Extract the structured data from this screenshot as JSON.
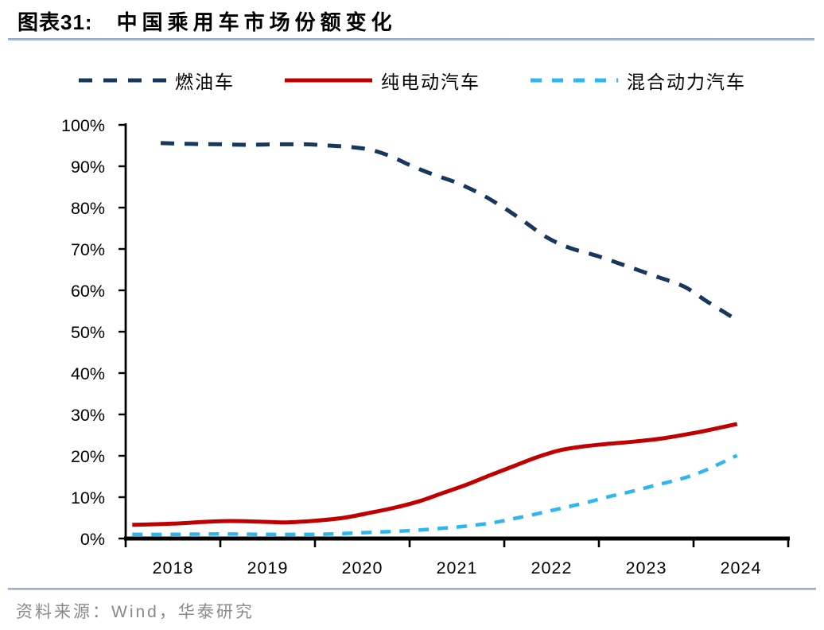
{
  "figure": {
    "label": "图表31:",
    "title": "中国乘用车市场份额变化",
    "source": "资料来源：Wind，华泰研究"
  },
  "legend": [
    {
      "label": "燃油车",
      "color": "#17375E",
      "dash": "17 14"
    },
    {
      "label": "纯电动汽车",
      "color": "#C00000",
      "dash": ""
    },
    {
      "label": "混合动力汽车",
      "color": "#2EB6F0",
      "dash": "14 13"
    }
  ],
  "chart_data": {
    "type": "line",
    "title": "中国乘用车市场份额变化",
    "grid": false,
    "legend_position": "top",
    "x_axis": {
      "range": [
        2018,
        2025
      ],
      "tick_labels": [
        "2018",
        "2019",
        "2020",
        "2021",
        "2022",
        "2023",
        "2024"
      ]
    },
    "y_axis": {
      "range": [
        0,
        100
      ],
      "ticks": [
        0,
        10,
        20,
        30,
        40,
        50,
        60,
        70,
        80,
        90,
        100
      ],
      "tick_labels": [
        "0%",
        "10%",
        "20%",
        "30%",
        "40%",
        "50%",
        "60%",
        "70%",
        "80%",
        "90%",
        "100%"
      ],
      "unit": "%"
    },
    "series": [
      {
        "name": "燃油车",
        "color": "#17375E",
        "line_style": "dashed",
        "dash": "17 13",
        "stroke_width": 5,
        "points": [
          [
            2018.37,
            95.6
          ],
          [
            2018.7,
            95.4
          ],
          [
            2019.0,
            95.3
          ],
          [
            2019.3,
            95.2
          ],
          [
            2019.6,
            95.3
          ],
          [
            2019.9,
            95.3
          ],
          [
            2020.15,
            95.0
          ],
          [
            2020.4,
            94.6
          ],
          [
            2020.6,
            93.9
          ],
          [
            2020.8,
            92.4
          ],
          [
            2021.0,
            90.3
          ],
          [
            2021.25,
            88.0
          ],
          [
            2021.5,
            86.0
          ],
          [
            2021.75,
            83.3
          ],
          [
            2022.0,
            79.9
          ],
          [
            2022.2,
            76.8
          ],
          [
            2022.45,
            72.8
          ],
          [
            2022.7,
            70.2
          ],
          [
            2023.0,
            68.2
          ],
          [
            2023.3,
            65.8
          ],
          [
            2023.6,
            63.4
          ],
          [
            2023.9,
            60.9
          ],
          [
            2024.15,
            57.2
          ],
          [
            2024.46,
            52.8
          ]
        ]
      },
      {
        "name": "纯电动汽车",
        "color": "#C00000",
        "line_style": "solid",
        "dash": "",
        "stroke_width": 5,
        "points": [
          [
            2018.07,
            3.3
          ],
          [
            2018.5,
            3.6
          ],
          [
            2019.0,
            4.2
          ],
          [
            2019.4,
            4.1
          ],
          [
            2019.7,
            3.9
          ],
          [
            2020.0,
            4.3
          ],
          [
            2020.3,
            5.0
          ],
          [
            2020.6,
            6.3
          ],
          [
            2020.85,
            7.5
          ],
          [
            2021.1,
            9.0
          ],
          [
            2021.35,
            11.0
          ],
          [
            2021.6,
            13.0
          ],
          [
            2021.85,
            15.3
          ],
          [
            2022.1,
            17.5
          ],
          [
            2022.35,
            19.7
          ],
          [
            2022.6,
            21.4
          ],
          [
            2022.85,
            22.3
          ],
          [
            2023.1,
            22.9
          ],
          [
            2023.4,
            23.5
          ],
          [
            2023.7,
            24.3
          ],
          [
            2024.0,
            25.5
          ],
          [
            2024.2,
            26.4
          ],
          [
            2024.46,
            27.7
          ]
        ]
      },
      {
        "name": "混合动力汽车",
        "color": "#2EB6F0",
        "line_style": "dashed",
        "dash": "13 11",
        "stroke_width": 4.5,
        "points": [
          [
            2018.07,
            1.0
          ],
          [
            2018.5,
            1.0
          ],
          [
            2019.0,
            1.1
          ],
          [
            2019.5,
            1.0
          ],
          [
            2020.0,
            1.0
          ],
          [
            2020.3,
            1.2
          ],
          [
            2020.6,
            1.5
          ],
          [
            2021.0,
            1.9
          ],
          [
            2021.3,
            2.4
          ],
          [
            2021.6,
            3.0
          ],
          [
            2021.9,
            3.9
          ],
          [
            2022.1,
            4.8
          ],
          [
            2022.35,
            6.0
          ],
          [
            2022.6,
            7.3
          ],
          [
            2022.85,
            8.6
          ],
          [
            2023.1,
            10.1
          ],
          [
            2023.35,
            11.4
          ],
          [
            2023.6,
            12.9
          ],
          [
            2023.85,
            14.3
          ],
          [
            2024.05,
            15.8
          ],
          [
            2024.25,
            17.8
          ],
          [
            2024.46,
            20.1
          ]
        ]
      }
    ]
  }
}
